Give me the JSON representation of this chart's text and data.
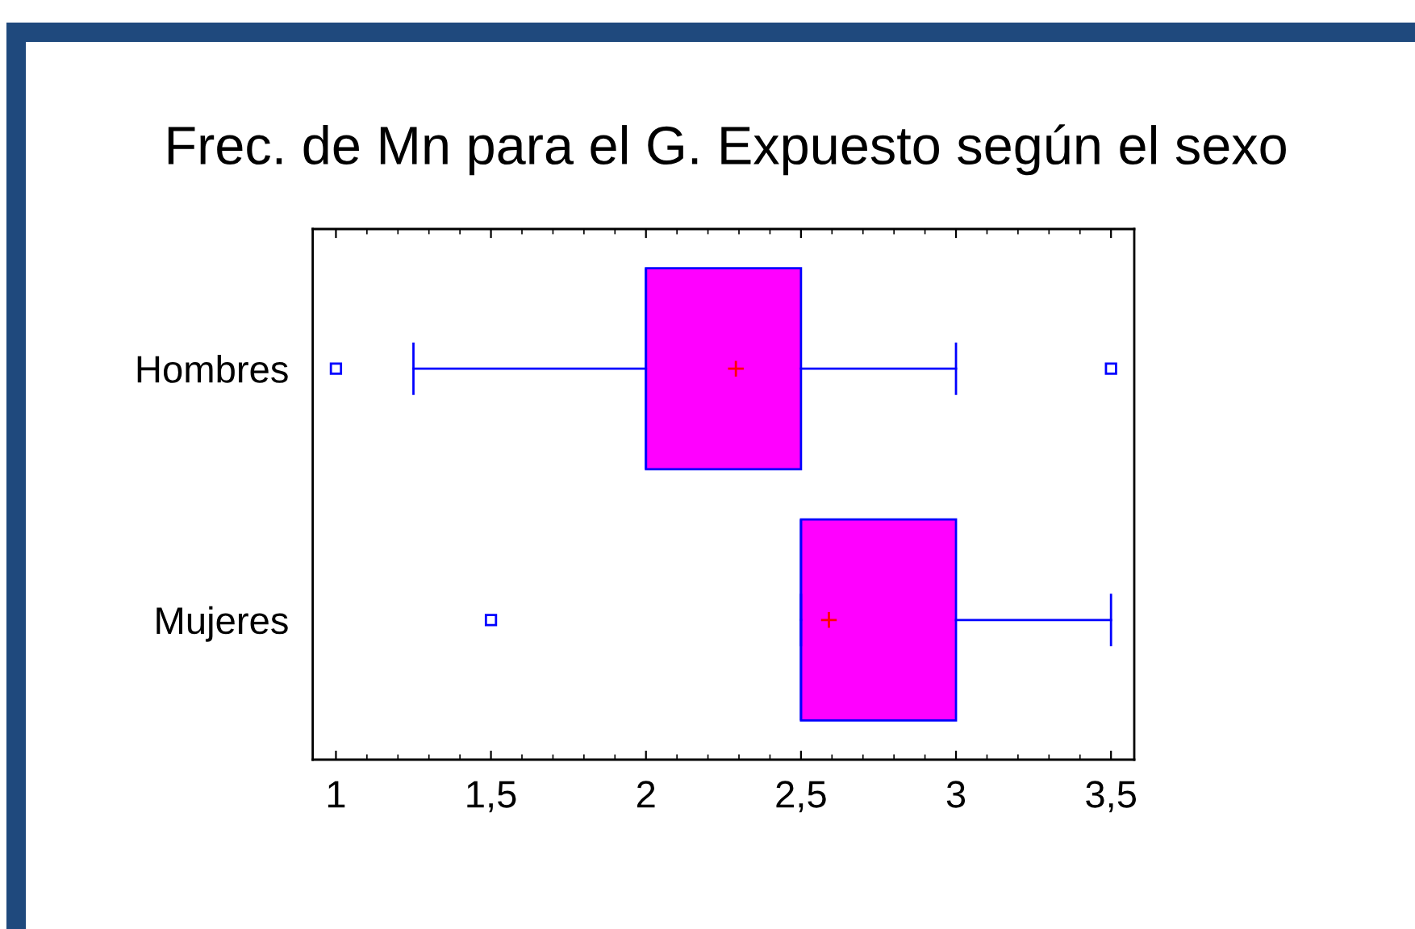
{
  "chart_data": {
    "type": "box",
    "title": "Frec. de Mn para el G. Expuesto según el sexo",
    "orientation": "horizontal",
    "categories": [
      "Hombres",
      "Mujeres"
    ],
    "boxes": [
      {
        "low": 1.25,
        "q1": 2,
        "median": 2,
        "q3": 2.5,
        "high": 3,
        "mean": 2.29,
        "outliers": [
          1,
          3.5
        ]
      },
      {
        "low": 2.5,
        "q1": 2.5,
        "median": 2.5,
        "q3": 3,
        "high": 3.5,
        "mean": 2.59,
        "outliers": [
          1.5
        ]
      }
    ],
    "color": "#ff00ff",
    "xlim": [
      0.925,
      3.575
    ],
    "xticks": [
      {
        "value": 1,
        "label": "1"
      },
      {
        "value": 1.1,
        "label": null
      },
      {
        "value": 1.2,
        "label": null
      },
      {
        "value": 1.3,
        "label": null
      },
      {
        "value": 1.4,
        "label": null
      },
      {
        "value": 1.5,
        "label": "1,5"
      },
      {
        "value": 1.6,
        "label": null
      },
      {
        "value": 1.7,
        "label": null
      },
      {
        "value": 1.8,
        "label": null
      },
      {
        "value": 1.9,
        "label": null
      },
      {
        "value": 2,
        "label": "2"
      },
      {
        "value": 2.1,
        "label": null
      },
      {
        "value": 2.2,
        "label": null
      },
      {
        "value": 2.3,
        "label": null
      },
      {
        "value": 2.4,
        "label": null
      },
      {
        "value": 2.5,
        "label": "2,5"
      },
      {
        "value": 2.6,
        "label": null
      },
      {
        "value": 2.7,
        "label": null
      },
      {
        "value": 2.8,
        "label": null
      },
      {
        "value": 2.9,
        "label": null
      },
      {
        "value": 3,
        "label": "3"
      },
      {
        "value": 3.1,
        "label": null
      },
      {
        "value": 3.2,
        "label": null
      },
      {
        "value": 3.3,
        "label": null
      },
      {
        "value": 3.4,
        "label": null
      },
      {
        "value": 3.5,
        "label": "3,5"
      }
    ]
  }
}
